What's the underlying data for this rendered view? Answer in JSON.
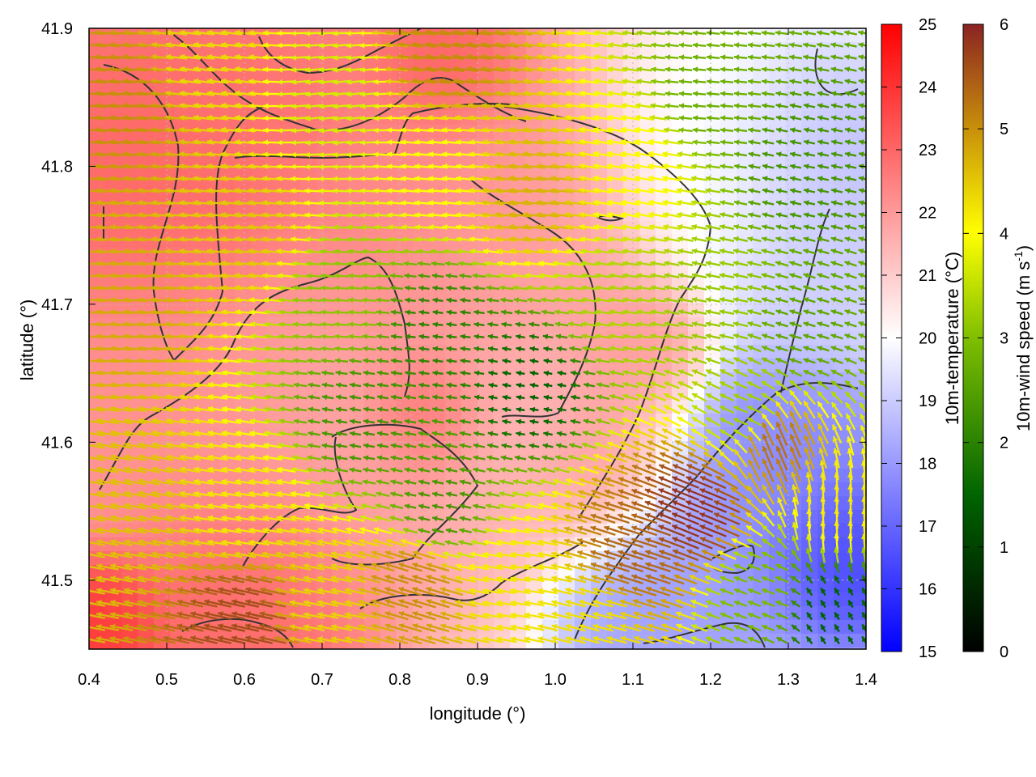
{
  "chart_data": {
    "type": "heatmap",
    "subtype": "wind-vector field over temperature map",
    "xlabel": "longitude (°)",
    "ylabel": "latitude (°)",
    "xlim": [
      0.4,
      1.4
    ],
    "ylim": [
      41.45,
      41.9
    ],
    "x_ticks": [
      0.4,
      0.5,
      0.6,
      0.7,
      0.8,
      0.9,
      1.0,
      1.1,
      1.2,
      1.3,
      1.4
    ],
    "x_tick_labels": [
      "0.4",
      "0.5",
      "0.6",
      "0.7",
      "0.8",
      "0.9",
      "1.0",
      "1.1",
      "1.2",
      "1.3",
      "1.4"
    ],
    "y_ticks": [
      41.5,
      41.6,
      41.7,
      41.8,
      41.9
    ],
    "y_tick_labels": [
      "41.5",
      "41.6",
      "41.7",
      "41.8",
      "41.9"
    ],
    "grid": true,
    "temperature_colorbar": {
      "label": "10m-temperature (°C)",
      "range": [
        15,
        25
      ],
      "ticks": [
        15,
        16,
        17,
        18,
        19,
        20,
        21,
        22,
        23,
        24,
        25
      ],
      "tick_labels": [
        "15",
        "16",
        "17",
        "18",
        "19",
        "20",
        "21",
        "22",
        "23",
        "24",
        "25"
      ],
      "colors": [
        "#0000ff",
        "#ffffff",
        "#ff0000"
      ]
    },
    "wind_colorbar": {
      "label_main": "10m-wind speed (m s",
      "label_sup": "-1",
      "label_end": ")",
      "range": [
        0,
        6
      ],
      "ticks": [
        0,
        1,
        2,
        3,
        4,
        5,
        6
      ],
      "tick_labels": [
        "0",
        "1",
        "2",
        "3",
        "4",
        "5",
        "6"
      ],
      "colors": [
        "#000000",
        "#006400",
        "#7fbf00",
        "#ffff00",
        "#c8900a",
        "#8b2323"
      ]
    },
    "temperature_regions": [
      {
        "x": 0.47,
        "y": 41.8,
        "t": 23.0,
        "r": 0.1
      },
      {
        "x": 0.5,
        "y": 41.62,
        "t": 22.2,
        "r": 0.1
      },
      {
        "x": 0.62,
        "y": 41.84,
        "t": 22.8,
        "r": 0.07
      },
      {
        "x": 0.72,
        "y": 41.6,
        "t": 21.8,
        "r": 0.1
      },
      {
        "x": 0.82,
        "y": 41.78,
        "t": 22.4,
        "r": 0.1
      },
      {
        "x": 0.85,
        "y": 41.87,
        "t": 23.2,
        "r": 0.05
      },
      {
        "x": 0.83,
        "y": 41.62,
        "t": 23.0,
        "r": 0.04
      },
      {
        "x": 0.95,
        "y": 41.75,
        "t": 21.8,
        "r": 0.09
      },
      {
        "x": 0.97,
        "y": 41.6,
        "t": 21.5,
        "r": 0.08
      },
      {
        "x": 1.07,
        "y": 41.58,
        "t": 22.3,
        "r": 0.05
      },
      {
        "x": 1.1,
        "y": 41.66,
        "t": 22.0,
        "r": 0.05
      },
      {
        "x": 0.6,
        "y": 41.49,
        "t": 23.0,
        "r": 0.08
      },
      {
        "x": 0.42,
        "y": 41.47,
        "t": 24.0,
        "r": 0.04
      },
      {
        "x": 1.22,
        "y": 41.8,
        "t": 20.0,
        "r": 0.08
      },
      {
        "x": 1.33,
        "y": 41.8,
        "t": 18.6,
        "r": 0.07
      },
      {
        "x": 1.33,
        "y": 41.72,
        "t": 19.0,
        "r": 0.06
      },
      {
        "x": 1.2,
        "y": 41.52,
        "t": 18.0,
        "r": 0.09
      },
      {
        "x": 1.36,
        "y": 41.52,
        "t": 16.0,
        "r": 0.05
      },
      {
        "x": 1.3,
        "y": 41.58,
        "t": 17.6,
        "r": 0.07
      },
      {
        "x": 1.12,
        "y": 41.48,
        "t": 18.2,
        "r": 0.05
      }
    ],
    "wind_field": [
      {
        "x": 0.45,
        "y": 41.85,
        "u": -4.8,
        "v": 0.4
      },
      {
        "x": 0.45,
        "y": 41.7,
        "u": -4.5,
        "v": 0.3
      },
      {
        "x": 0.45,
        "y": 41.55,
        "u": -4.2,
        "v": 0.8
      },
      {
        "x": 0.55,
        "y": 41.87,
        "u": -4.0,
        "v": 0.5
      },
      {
        "x": 0.6,
        "y": 41.75,
        "u": -4.2,
        "v": 0.4
      },
      {
        "x": 0.6,
        "y": 41.55,
        "u": -3.8,
        "v": 0.6
      },
      {
        "x": 0.72,
        "y": 41.85,
        "u": -3.2,
        "v": -0.3
      },
      {
        "x": 0.72,
        "y": 41.7,
        "u": -2.5,
        "v": 0.2
      },
      {
        "x": 0.75,
        "y": 41.62,
        "u": -1.8,
        "v": 0.3
      },
      {
        "x": 0.85,
        "y": 41.8,
        "u": -3.6,
        "v": 0.3
      },
      {
        "x": 0.85,
        "y": 41.68,
        "u": -1.6,
        "v": 0.2
      },
      {
        "x": 0.85,
        "y": 41.55,
        "u": -1.8,
        "v": 0.4
      },
      {
        "x": 0.86,
        "y": 41.88,
        "u": -4.8,
        "v": 0.6
      },
      {
        "x": 0.97,
        "y": 41.78,
        "u": -4.4,
        "v": 0.5
      },
      {
        "x": 0.97,
        "y": 41.64,
        "u": -1.2,
        "v": 0.2
      },
      {
        "x": 1.1,
        "y": 41.8,
        "u": -3.6,
        "v": 0.6
      },
      {
        "x": 1.08,
        "y": 41.7,
        "u": -2.8,
        "v": 0.4
      },
      {
        "x": 1.2,
        "y": 41.85,
        "u": -2.2,
        "v": 0.2
      },
      {
        "x": 1.2,
        "y": 41.7,
        "u": -2.6,
        "v": 0.5
      },
      {
        "x": 1.32,
        "y": 41.8,
        "u": -1.8,
        "v": 0.4
      },
      {
        "x": 1.32,
        "y": 41.68,
        "u": -2.0,
        "v": 0.6
      },
      {
        "x": 1.25,
        "y": 41.62,
        "u": -2.5,
        "v": 1.0
      },
      {
        "x": 1.18,
        "y": 41.55,
        "u": -5.4,
        "v": 2.2
      },
      {
        "x": 1.1,
        "y": 41.52,
        "u": -5.0,
        "v": 1.6
      },
      {
        "x": 1.05,
        "y": 41.47,
        "u": -3.8,
        "v": 1.0
      },
      {
        "x": 1.28,
        "y": 41.6,
        "u": -2.0,
        "v": 4.8
      },
      {
        "x": 1.36,
        "y": 41.55,
        "u": -0.2,
        "v": 3.8
      },
      {
        "x": 1.36,
        "y": 41.48,
        "u": -0.6,
        "v": 1.0
      },
      {
        "x": 1.26,
        "y": 41.49,
        "u": -2.2,
        "v": 0.8
      },
      {
        "x": 0.95,
        "y": 41.5,
        "u": -3.8,
        "v": 0.6
      },
      {
        "x": 0.82,
        "y": 41.5,
        "u": -4.6,
        "v": 1.4
      },
      {
        "x": 0.7,
        "y": 41.48,
        "u": -4.0,
        "v": 0.8
      },
      {
        "x": 0.6,
        "y": 41.47,
        "u": -5.4,
        "v": 1.2
      }
    ]
  }
}
